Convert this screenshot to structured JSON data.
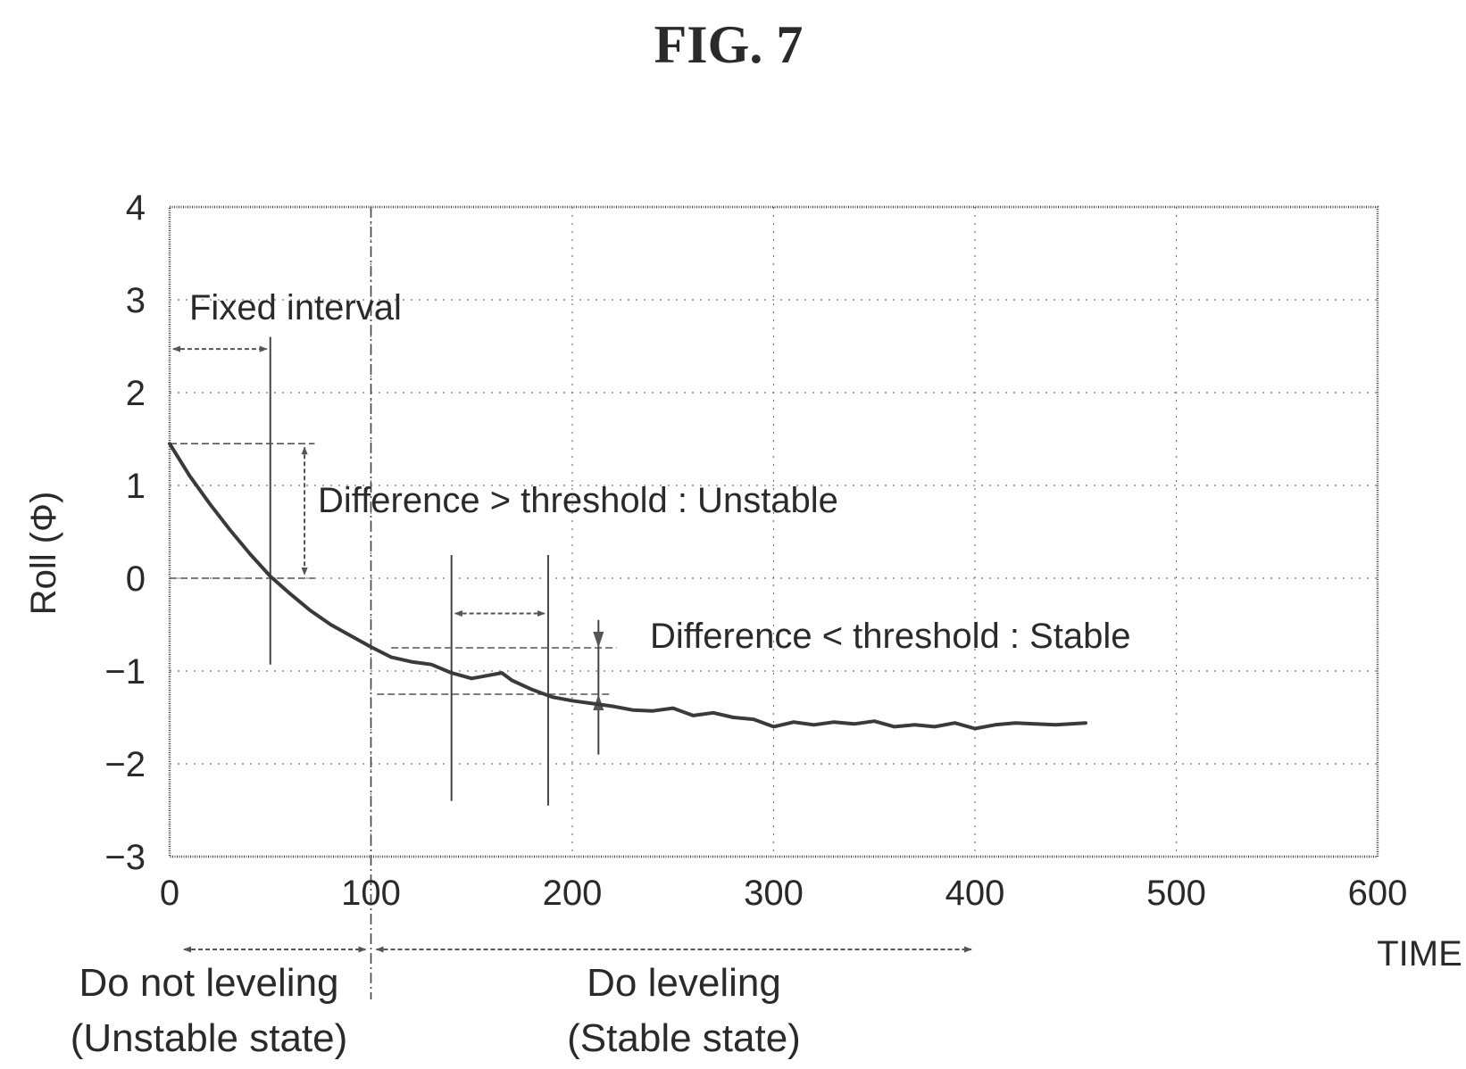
{
  "figure_label": "FIG. 7",
  "chart_data": {
    "type": "line",
    "title": "",
    "xlabel": "TIME",
    "ylabel": "Roll (Φ)",
    "xlim": [
      0,
      600
    ],
    "ylim": [
      -3,
      4
    ],
    "x_ticks": [
      "0",
      "100",
      "200",
      "300",
      "400",
      "500",
      "600"
    ],
    "y_ticks": [
      "4",
      "3",
      "2",
      "1",
      "0",
      "−1",
      "−2",
      "−3"
    ],
    "grid": true,
    "series": [
      {
        "name": "",
        "x": [
          0,
          10,
          20,
          30,
          40,
          50,
          60,
          70,
          80,
          90,
          100,
          110,
          120,
          130,
          140,
          150,
          160,
          165,
          170,
          180,
          190,
          200,
          210,
          220,
          230,
          240,
          250,
          260,
          270,
          280,
          290,
          300,
          310,
          320,
          330,
          340,
          350,
          360,
          370,
          380,
          390,
          400,
          410,
          420,
          430,
          440,
          455
        ],
        "y": [
          1.45,
          1.1,
          0.8,
          0.52,
          0.26,
          0.02,
          -0.17,
          -0.35,
          -0.5,
          -0.62,
          -0.74,
          -0.85,
          -0.9,
          -0.93,
          -1.02,
          -1.08,
          -1.04,
          -1.02,
          -1.1,
          -1.2,
          -1.28,
          -1.32,
          -1.35,
          -1.38,
          -1.42,
          -1.43,
          -1.4,
          -1.48,
          -1.45,
          -1.5,
          -1.52,
          -1.6,
          -1.55,
          -1.58,
          -1.55,
          -1.57,
          -1.54,
          -1.6,
          -1.58,
          -1.6,
          -1.56,
          -1.62,
          -1.58,
          -1.56,
          -1.57,
          -1.58,
          -1.56
        ]
      }
    ],
    "annotations": {
      "fixed_interval": "Fixed interval",
      "unstable_note": "Difference > threshold : Unstable",
      "stable_note": "Difference < threshold : Stable"
    },
    "regions": [
      {
        "from": 0,
        "to": 100,
        "line1": "Do not leveling",
        "line2": "(Unstable state)"
      },
      {
        "from": 100,
        "to": 400,
        "line1": "Do leveling",
        "line2": "(Stable state)"
      }
    ],
    "marker_lines": {
      "fixed_interval_end": 50,
      "boundary": 100,
      "window_start": 140,
      "window_end": 188,
      "stable_diff_x": 213,
      "unstable_diff_x": 67,
      "unstable_top": 1.45,
      "unstable_bottom": 0,
      "stable_top": -0.75,
      "stable_bottom": -1.25
    }
  }
}
